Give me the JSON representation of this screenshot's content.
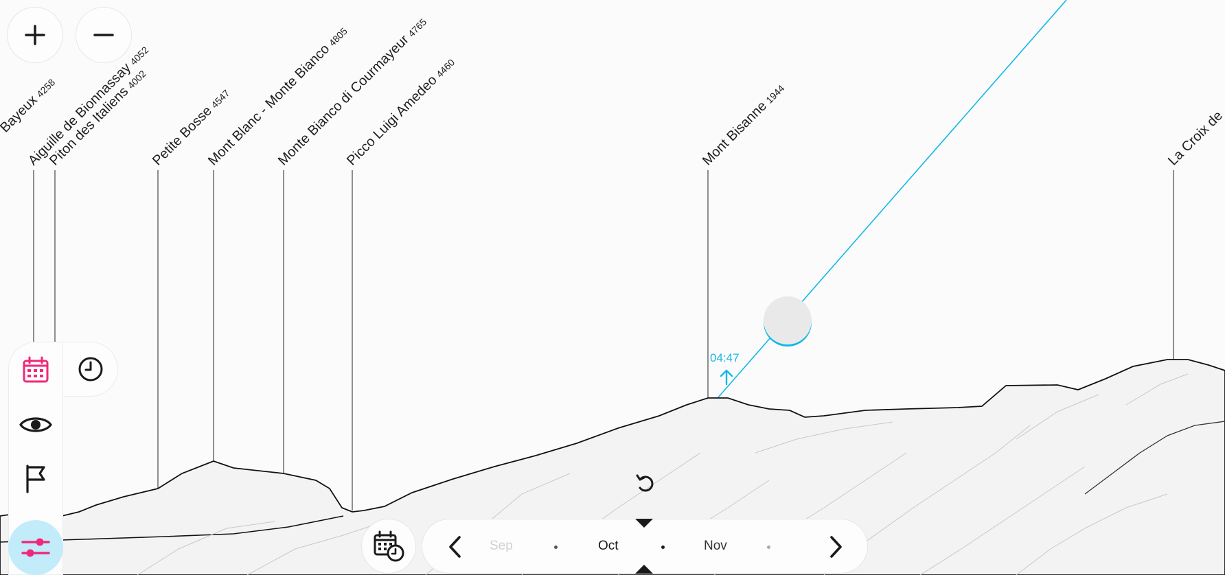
{
  "colors": {
    "accent_cyan": "#12b8e6",
    "accent_pink": "#f0287a",
    "settings_bg": "#c3ecfb",
    "terrain_fill": "#f3f3f3",
    "terrain_line": "#111111"
  },
  "zoom": {
    "zoom_in_icon": "plus-icon",
    "zoom_out_icon": "minus-icon"
  },
  "peaks": [
    {
      "name": "Bayeux",
      "elevation": "4258"
    },
    {
      "name": "Aiguille de Bionnassay",
      "elevation": "4052"
    },
    {
      "name": "Piton des Italiens",
      "elevation": "4002"
    },
    {
      "name": "Petite Bosse",
      "elevation": "4547"
    },
    {
      "name": "Mont Blanc - Monte Bianco",
      "elevation": "4805"
    },
    {
      "name": "Monte Bianco di Courmayeur",
      "elevation": "4765"
    },
    {
      "name": "Picco Luigi Amedeo",
      "elevation": "4460"
    },
    {
      "name": "Mont Bisanne",
      "elevation": "1944"
    },
    {
      "name": "La Croix de",
      "elevation": ""
    }
  ],
  "sun": {
    "rise_time": "04:47",
    "rise_arrow_icon": "arrow-up-icon"
  },
  "side_panel": {
    "items": [
      {
        "icon": "calendar-icon",
        "active": true
      },
      {
        "icon": "clock-icon",
        "active": false
      },
      {
        "icon": "eye-icon",
        "active": false
      },
      {
        "icon": "flag-icon",
        "active": false
      },
      {
        "icon": "sliders-icon",
        "active": true
      }
    ]
  },
  "timeline": {
    "prev_icon": "chevron-left-icon",
    "next_icon": "chevron-right-icon",
    "months": [
      {
        "label": "Sep",
        "state": "faded"
      },
      {
        "label": "Oct",
        "state": "current"
      },
      {
        "label": "Nov",
        "state": "normal"
      }
    ],
    "reset_icon": "rotate-ccw-icon",
    "datetime_icon": "calendar-clock-icon"
  }
}
